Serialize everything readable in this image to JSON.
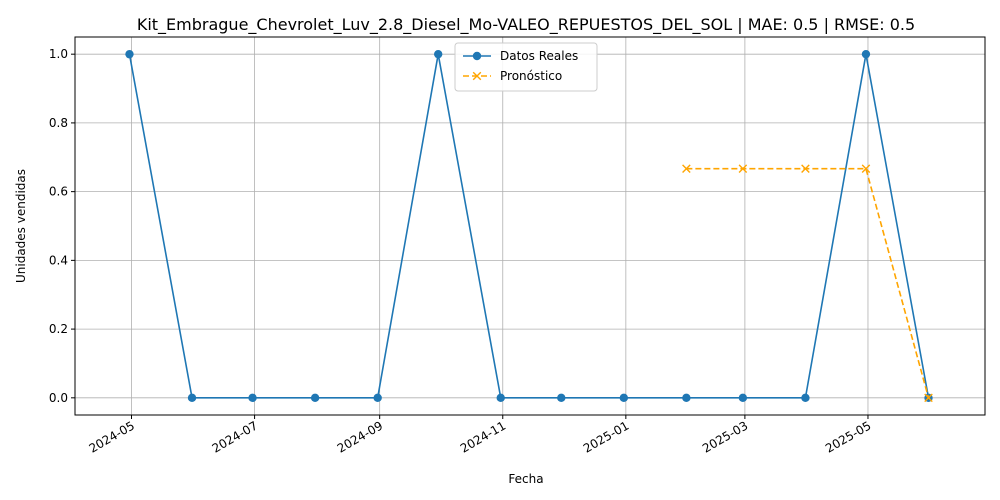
{
  "chart_data": {
    "type": "line",
    "title": "Kit_Embrague_Chevrolet_Luv_2.8_Diesel_Mo-VALEO_REPUESTOS_DEL_SOL | MAE: 0.5 | RMSE: 0.5",
    "xlabel": "Fecha",
    "ylabel": "Unidades vendidas",
    "ylim": [
      -0.05,
      1.05
    ],
    "xlim": [
      "2024-04-03",
      "2025-06-28"
    ],
    "grid": true,
    "legend_placement": "top-center",
    "x_ticks": [
      "2024-05",
      "2024-07",
      "2024-09",
      "2024-11",
      "2025-01",
      "2025-03",
      "2025-05"
    ],
    "y_ticks": [
      "0.0",
      "0.2",
      "0.4",
      "0.6",
      "0.8",
      "1.0"
    ],
    "series": [
      {
        "name": "Datos Reales",
        "color": "#1f77b4",
        "marker": "circle",
        "linestyle": "solid",
        "x": [
          "2024-04-30",
          "2024-05-31",
          "2024-06-30",
          "2024-07-31",
          "2024-08-31",
          "2024-09-30",
          "2024-10-31",
          "2024-11-30",
          "2024-12-31",
          "2025-01-31",
          "2025-02-28",
          "2025-03-31",
          "2025-04-30",
          "2025-05-31"
        ],
        "values": [
          1,
          0,
          0,
          0,
          0,
          1,
          0,
          0,
          0,
          0,
          0,
          0,
          1,
          0
        ]
      },
      {
        "name": "Pronóstico",
        "color": "#ffa500",
        "marker": "x",
        "linestyle": "dashed",
        "x": [
          "2025-01-31",
          "2025-02-28",
          "2025-03-31",
          "2025-04-30",
          "2025-05-31"
        ],
        "values": [
          0.6667,
          0.6667,
          0.6667,
          0.6667,
          0
        ]
      }
    ]
  }
}
